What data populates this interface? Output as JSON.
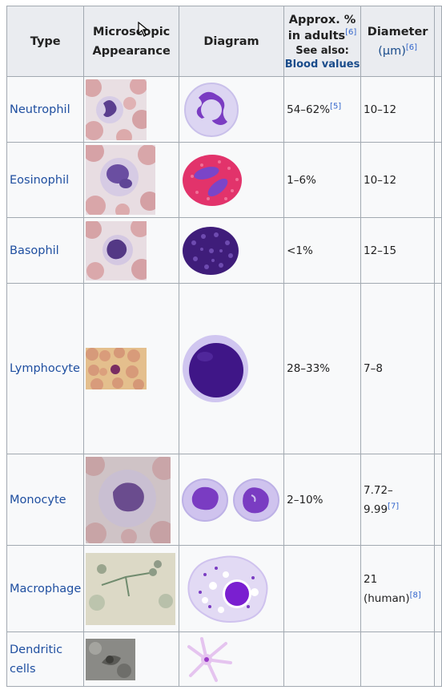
{
  "header": {
    "type": "Type",
    "appearance_line1": "Microscopic",
    "appearance_line2": "Appearance",
    "diagram": "Diagram",
    "percent_line1": "Approx. %",
    "percent_line2": "in adults",
    "percent_ref": "[6]",
    "see_also": "See also:",
    "blood_values": "Blood values",
    "diameter_line1": "Diameter",
    "diameter_unit": "(μm)",
    "diameter_ref": "[6]"
  },
  "rows": [
    {
      "type": "Neutrophil",
      "percent": "54–62%",
      "percent_ref": "[5]",
      "diameter": "10–12"
    },
    {
      "type": "Eosinophil",
      "percent": "1–6%",
      "diameter": "10–12"
    },
    {
      "type": "Basophil",
      "percent": "<1%",
      "diameter": "12–15"
    },
    {
      "type": "Lymphocyte",
      "percent": "28–33%",
      "diameter": "7–8"
    },
    {
      "type": "Monocyte",
      "percent": "2–10%",
      "diameter_line1": "7.72–",
      "diameter_line2": "9.99",
      "diameter_ref": "[7]"
    },
    {
      "type": "Macrophage",
      "percent": "",
      "diameter_line1": "21",
      "diameter_line2": "(human)",
      "diameter_ref": "[8]"
    },
    {
      "type_line1": "Dendritic",
      "type_line2": "cells",
      "percent": "",
      "diameter": ""
    }
  ],
  "icons": {
    "cursor": "mouse-pointer-icon"
  }
}
